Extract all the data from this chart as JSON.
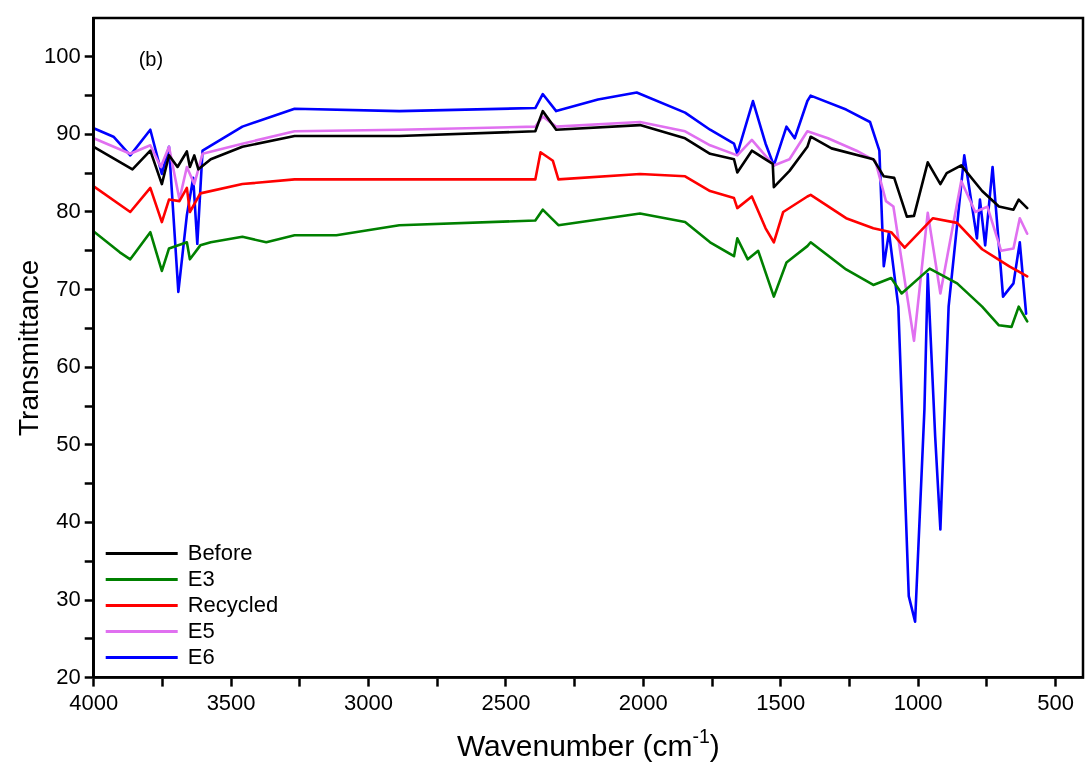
{
  "chart_data": {
    "type": "line",
    "xlabel": "Wavenumber (cm$^{-1}$)",
    "ylabel": "Transmittance",
    "annotations": [
      "(b)"
    ],
    "xlim": [
      4000,
      400
    ],
    "ylim": [
      20,
      105
    ],
    "xticks": [
      4000,
      {
        "value": 3750,
        "label": null
      },
      3500,
      {
        "value": 3250,
        "label": null
      },
      3000,
      {
        "value": 2750,
        "label": null
      },
      2500,
      {
        "value": 2250,
        "label": null
      },
      2000,
      {
        "value": 1750,
        "label": null
      },
      1500,
      {
        "value": 1250,
        "label": null
      },
      1000,
      {
        "value": 750,
        "label": null
      },
      500
    ],
    "yticks": [
      20,
      {
        "value": 25,
        "label": null
      },
      30,
      {
        "value": 35,
        "label": null
      },
      40,
      {
        "value": 45,
        "label": null
      },
      50,
      {
        "value": 55,
        "label": null
      },
      60,
      {
        "value": 65,
        "label": null
      },
      70,
      {
        "value": 75,
        "label": null
      },
      80,
      {
        "value": 85,
        "label": null
      },
      90,
      {
        "value": 95,
        "label": null
      },
      100
    ],
    "grid": false,
    "legend": "bottom left",
    "marker": "none",
    "line_style": "solid",
    "series": [
      {
        "name": "Before",
        "color": "#000000",
        "x": [
          4000,
          3859,
          3794,
          3752,
          3726,
          3695,
          3661,
          3650,
          3634,
          3619,
          3574,
          3459,
          3269,
          2888,
          2393,
          2366,
          2317,
          2012,
          1848,
          1757,
          1670,
          1658,
          1605,
          1529,
          1525,
          1468,
          1403,
          1391,
          1315,
          1163,
          1125,
          1087,
          1041,
          1015,
          965,
          919,
          896,
          843,
          767,
          706,
          653,
          634,
          603
        ],
        "values": [
          88.4,
          85.5,
          87.9,
          83.6,
          87.3,
          85.8,
          87.8,
          85.8,
          87.3,
          85.5,
          86.8,
          88.4,
          89.8,
          89.8,
          90.4,
          93.0,
          90.6,
          91.2,
          89.5,
          87.5,
          86.8,
          85.1,
          87.9,
          86.2,
          83.2,
          85.3,
          88.4,
          89.7,
          88.2,
          86.8,
          84.6,
          84.4,
          79.4,
          79.5,
          86.4,
          83.6,
          85.0,
          86.0,
          82.7,
          80.7,
          80.3,
          81.6,
          80.5
        ]
      },
      {
        "name": "E3",
        "color": "#008000",
        "x": [
          4000,
          3905,
          3867,
          3794,
          3752,
          3726,
          3661,
          3650,
          3612,
          3574,
          3459,
          3372,
          3269,
          3117,
          2888,
          2393,
          2366,
          2309,
          2012,
          1848,
          1757,
          1670,
          1658,
          1620,
          1582,
          1525,
          1479,
          1403,
          1391,
          1262,
          1163,
          1098,
          1060,
          958,
          858,
          767,
          706,
          660,
          634,
          603
        ],
        "values": [
          77.5,
          74.8,
          73.9,
          77.4,
          72.4,
          75.3,
          76.1,
          73.9,
          75.7,
          76.1,
          76.8,
          76.1,
          77.0,
          77.0,
          78.3,
          78.9,
          80.3,
          78.3,
          79.8,
          78.7,
          76.1,
          74.3,
          76.6,
          73.9,
          75.0,
          69.1,
          73.5,
          75.6,
          76.1,
          72.6,
          70.6,
          71.5,
          69.5,
          72.7,
          70.8,
          67.8,
          65.4,
          65.2,
          67.8,
          65.9
        ]
      },
      {
        "name": "Recycled",
        "color": "#ff0000",
        "x": [
          4000,
          3867,
          3794,
          3752,
          3726,
          3688,
          3661,
          3650,
          3612,
          3459,
          3269,
          2888,
          2393,
          2374,
          2329,
          2309,
          2012,
          1848,
          1757,
          1670,
          1658,
          1605,
          1555,
          1525,
          1491,
          1403,
          1391,
          1262,
          1163,
          1098,
          1049,
          946,
          858,
          767,
          668,
          603
        ],
        "values": [
          83.3,
          80.0,
          83.1,
          78.7,
          81.6,
          81.4,
          83.1,
          80.0,
          82.4,
          83.6,
          84.2,
          84.2,
          84.2,
          87.7,
          86.6,
          84.2,
          84.9,
          84.6,
          82.7,
          81.8,
          80.5,
          82.0,
          77.9,
          76.1,
          80.0,
          82.0,
          82.2,
          79.2,
          77.9,
          77.4,
          75.4,
          79.2,
          78.6,
          75.2,
          73.0,
          71.7
        ]
      },
      {
        "name": "E5",
        "color": "#e070f0",
        "x": [
          4000,
          3867,
          3794,
          3756,
          3726,
          3688,
          3661,
          3634,
          3604,
          3459,
          3269,
          2888,
          2393,
          2366,
          2317,
          2012,
          1848,
          1757,
          1658,
          1605,
          1525,
          1468,
          1403,
          1328,
          1224,
          1156,
          1117,
          1090,
          1015,
          965,
          919,
          843,
          792,
          748,
          698,
          653,
          630,
          603
        ],
        "values": [
          89.5,
          87.5,
          88.6,
          85.8,
          88.4,
          81.6,
          85.8,
          83.6,
          87.5,
          88.8,
          90.4,
          90.6,
          91.0,
          92.3,
          91.0,
          91.6,
          90.4,
          88.6,
          87.3,
          89.3,
          86.0,
          86.8,
          90.4,
          89.5,
          87.9,
          86.6,
          81.4,
          80.7,
          63.4,
          79.9,
          69.5,
          84.0,
          80.0,
          80.7,
          75.0,
          75.3,
          79.2,
          77.2
        ]
      },
      {
        "name": "E6",
        "color": "#0000ff",
        "x": [
          4000,
          3928,
          3867,
          3794,
          3752,
          3726,
          3692,
          3661,
          3638,
          3623,
          3604,
          3459,
          3269,
          2888,
          2393,
          2366,
          2317,
          2165,
          2024,
          1848,
          1757,
          1670,
          1658,
          1601,
          1555,
          1525,
          1479,
          1449,
          1403,
          1391,
          1262,
          1175,
          1141,
          1125,
          1106,
          1072,
          1034,
          1011,
          977,
          965,
          938,
          919,
          889,
          832,
          786,
          775,
          756,
          729,
          691,
          653,
          630,
          607
        ],
        "values": [
          90.8,
          89.7,
          87.3,
          90.6,
          84.9,
          88.4,
          69.7,
          79.6,
          84.4,
          75.9,
          87.9,
          91.0,
          93.3,
          93.0,
          93.4,
          95.2,
          93.0,
          94.5,
          95.4,
          92.8,
          90.6,
          88.8,
          87.5,
          94.3,
          88.8,
          86.0,
          91.0,
          89.5,
          94.3,
          95.0,
          93.2,
          91.6,
          87.9,
          73.0,
          77.4,
          67.8,
          30.5,
          27.2,
          54.6,
          72.0,
          51.1,
          39.1,
          67.8,
          87.3,
          76.6,
          81.6,
          75.7,
          85.8,
          69.1,
          70.8,
          76.1,
          66.9
        ]
      }
    ]
  }
}
